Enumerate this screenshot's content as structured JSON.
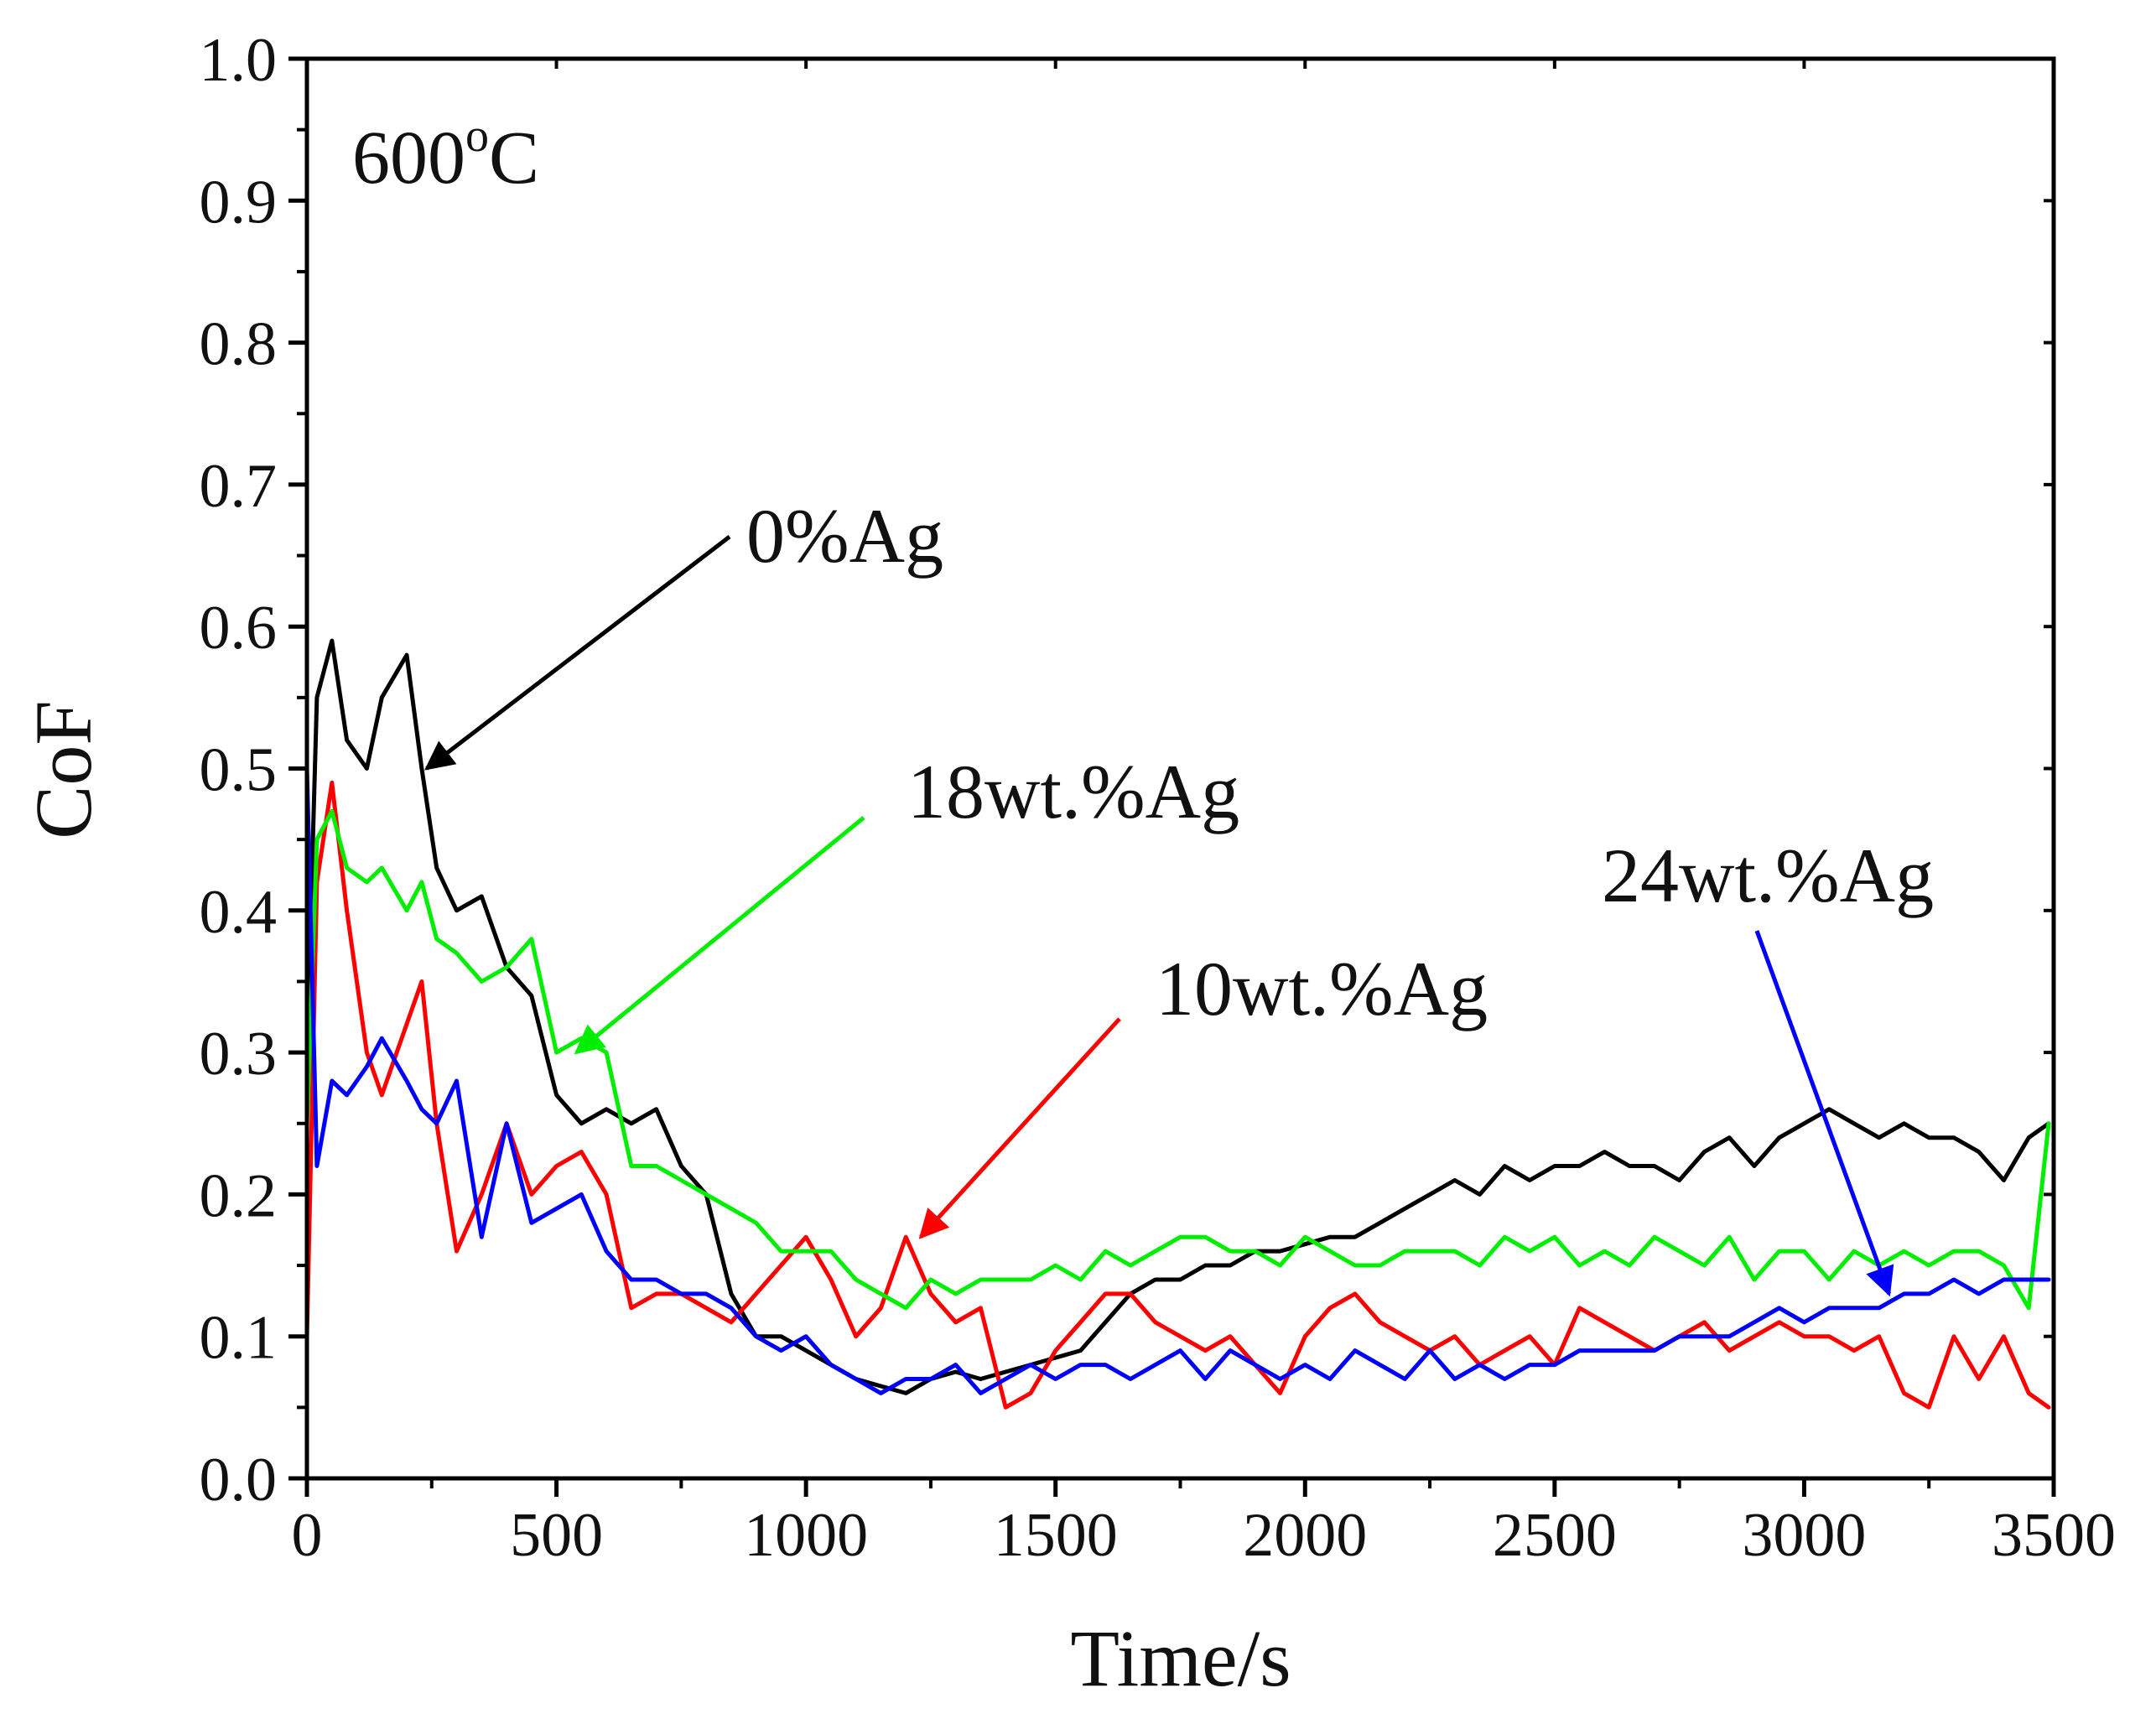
{
  "chart_data": {
    "type": "line",
    "title": "",
    "xlabel": "Time/s",
    "ylabel": "CoF",
    "xlim": [
      0,
      3500
    ],
    "ylim": [
      0.0,
      1.0
    ],
    "x_ticks": [
      "0",
      "500",
      "1000",
      "1500",
      "2000",
      "2500",
      "3000",
      "3500"
    ],
    "y_ticks": [
      "0.0",
      "0.1",
      "0.2",
      "0.3",
      "0.4",
      "0.5",
      "0.6",
      "0.7",
      "0.8",
      "0.9",
      "1.0"
    ],
    "temperature_label": {
      "value": "600",
      "sup": "o",
      "unit": "C"
    },
    "series": [
      {
        "name": "0%Ag",
        "color": "#000000",
        "x": [
          0,
          20,
          50,
          80,
          120,
          150,
          200,
          230,
          260,
          300,
          350,
          400,
          450,
          500,
          550,
          600,
          650,
          700,
          750,
          800,
          850,
          900,
          950,
          1000,
          1050,
          1100,
          1150,
          1200,
          1250,
          1300,
          1350,
          1400,
          1450,
          1500,
          1550,
          1600,
          1650,
          1700,
          1750,
          1800,
          1850,
          1900,
          1950,
          2000,
          2050,
          2100,
          2150,
          2200,
          2250,
          2300,
          2350,
          2400,
          2450,
          2500,
          2550,
          2600,
          2650,
          2700,
          2750,
          2800,
          2850,
          2900,
          2950,
          3000,
          3050,
          3100,
          3150,
          3200,
          3250,
          3300,
          3350,
          3400,
          3450,
          3490
        ],
        "values": [
          0.3,
          0.55,
          0.59,
          0.52,
          0.5,
          0.55,
          0.58,
          0.5,
          0.43,
          0.4,
          0.41,
          0.36,
          0.34,
          0.27,
          0.25,
          0.26,
          0.25,
          0.26,
          0.22,
          0.2,
          0.13,
          0.1,
          0.1,
          0.09,
          0.08,
          0.07,
          0.065,
          0.06,
          0.07,
          0.075,
          0.07,
          0.075,
          0.08,
          0.085,
          0.09,
          0.11,
          0.13,
          0.14,
          0.14,
          0.15,
          0.15,
          0.16,
          0.16,
          0.165,
          0.17,
          0.17,
          0.18,
          0.19,
          0.2,
          0.21,
          0.2,
          0.22,
          0.21,
          0.22,
          0.22,
          0.23,
          0.22,
          0.22,
          0.21,
          0.23,
          0.24,
          0.22,
          0.24,
          0.25,
          0.26,
          0.25,
          0.24,
          0.25,
          0.24,
          0.24,
          0.23,
          0.21,
          0.24,
          0.25
        ]
      },
      {
        "name": "10wt.%Ag",
        "color": "#ff0000",
        "x": [
          0,
          20,
          50,
          80,
          120,
          150,
          200,
          230,
          260,
          300,
          350,
          400,
          450,
          500,
          550,
          600,
          650,
          700,
          750,
          800,
          850,
          900,
          950,
          1000,
          1050,
          1100,
          1150,
          1200,
          1250,
          1300,
          1350,
          1400,
          1450,
          1500,
          1550,
          1600,
          1650,
          1700,
          1750,
          1800,
          1850,
          1900,
          1950,
          2000,
          2050,
          2100,
          2150,
          2200,
          2250,
          2300,
          2350,
          2400,
          2450,
          2500,
          2550,
          2600,
          2650,
          2700,
          2750,
          2800,
          2850,
          2900,
          2950,
          3000,
          3050,
          3100,
          3150,
          3200,
          3250,
          3300,
          3350,
          3400,
          3450,
          3490
        ],
        "values": [
          0.1,
          0.42,
          0.49,
          0.4,
          0.3,
          0.27,
          0.32,
          0.35,
          0.25,
          0.16,
          0.2,
          0.25,
          0.2,
          0.22,
          0.23,
          0.2,
          0.12,
          0.13,
          0.13,
          0.12,
          0.11,
          0.13,
          0.15,
          0.17,
          0.14,
          0.1,
          0.12,
          0.17,
          0.13,
          0.11,
          0.12,
          0.05,
          0.06,
          0.09,
          0.11,
          0.13,
          0.13,
          0.11,
          0.1,
          0.09,
          0.1,
          0.08,
          0.06,
          0.1,
          0.12,
          0.13,
          0.11,
          0.1,
          0.09,
          0.1,
          0.08,
          0.09,
          0.1,
          0.08,
          0.12,
          0.11,
          0.1,
          0.09,
          0.1,
          0.11,
          0.09,
          0.1,
          0.11,
          0.1,
          0.1,
          0.09,
          0.1,
          0.06,
          0.05,
          0.1,
          0.07,
          0.1,
          0.06,
          0.05
        ]
      },
      {
        "name": "18wt.%Ag",
        "color": "#00ee00",
        "x": [
          0,
          20,
          50,
          80,
          120,
          150,
          200,
          230,
          260,
          300,
          350,
          400,
          450,
          500,
          550,
          600,
          650,
          700,
          750,
          800,
          850,
          900,
          950,
          1000,
          1050,
          1100,
          1150,
          1200,
          1250,
          1300,
          1350,
          1400,
          1450,
          1500,
          1550,
          1600,
          1650,
          1700,
          1750,
          1800,
          1850,
          1900,
          1950,
          2000,
          2050,
          2100,
          2150,
          2200,
          2250,
          2300,
          2350,
          2400,
          2450,
          2500,
          2550,
          2600,
          2650,
          2700,
          2750,
          2800,
          2850,
          2900,
          2950,
          3000,
          3050,
          3100,
          3150,
          3200,
          3250,
          3300,
          3350,
          3400,
          3450,
          3490
        ],
        "values": [
          0.25,
          0.45,
          0.47,
          0.43,
          0.42,
          0.43,
          0.4,
          0.42,
          0.38,
          0.37,
          0.35,
          0.36,
          0.38,
          0.3,
          0.31,
          0.3,
          0.22,
          0.22,
          0.21,
          0.2,
          0.19,
          0.18,
          0.16,
          0.16,
          0.16,
          0.14,
          0.13,
          0.12,
          0.14,
          0.13,
          0.14,
          0.14,
          0.14,
          0.15,
          0.14,
          0.16,
          0.15,
          0.16,
          0.17,
          0.17,
          0.16,
          0.16,
          0.15,
          0.17,
          0.16,
          0.15,
          0.15,
          0.16,
          0.16,
          0.16,
          0.15,
          0.17,
          0.16,
          0.17,
          0.15,
          0.16,
          0.15,
          0.17,
          0.16,
          0.15,
          0.17,
          0.14,
          0.16,
          0.16,
          0.14,
          0.16,
          0.15,
          0.16,
          0.15,
          0.16,
          0.16,
          0.15,
          0.12,
          0.25
        ]
      },
      {
        "name": "24wt.%Ag",
        "color": "#0000ff",
        "x": [
          0,
          20,
          50,
          80,
          120,
          150,
          200,
          230,
          260,
          300,
          350,
          400,
          450,
          500,
          550,
          600,
          650,
          700,
          750,
          800,
          850,
          900,
          950,
          1000,
          1050,
          1100,
          1150,
          1200,
          1250,
          1300,
          1350,
          1400,
          1450,
          1500,
          1550,
          1600,
          1650,
          1700,
          1750,
          1800,
          1850,
          1900,
          1950,
          2000,
          2050,
          2100,
          2150,
          2200,
          2250,
          2300,
          2350,
          2400,
          2450,
          2500,
          2550,
          2600,
          2650,
          2700,
          2750,
          2800,
          2850,
          2900,
          2950,
          3000,
          3050,
          3100,
          3150,
          3200,
          3250,
          3300,
          3350,
          3400,
          3450,
          3490
        ],
        "values": [
          0.5,
          0.22,
          0.28,
          0.27,
          0.29,
          0.31,
          0.28,
          0.26,
          0.25,
          0.28,
          0.17,
          0.25,
          0.18,
          0.19,
          0.2,
          0.16,
          0.14,
          0.14,
          0.13,
          0.13,
          0.12,
          0.1,
          0.09,
          0.1,
          0.08,
          0.07,
          0.06,
          0.07,
          0.07,
          0.08,
          0.06,
          0.07,
          0.08,
          0.07,
          0.08,
          0.08,
          0.07,
          0.08,
          0.09,
          0.07,
          0.09,
          0.08,
          0.07,
          0.08,
          0.07,
          0.09,
          0.08,
          0.07,
          0.09,
          0.07,
          0.08,
          0.07,
          0.08,
          0.08,
          0.09,
          0.09,
          0.09,
          0.09,
          0.1,
          0.1,
          0.1,
          0.11,
          0.12,
          0.11,
          0.12,
          0.12,
          0.12,
          0.13,
          0.13,
          0.14,
          0.13,
          0.14,
          0.14,
          0.14
        ]
      }
    ],
    "annotations": [
      {
        "text": "0%Ag",
        "series": "0%Ag",
        "color": "#000000",
        "arrow_tip": [
          240,
          0.5
        ]
      },
      {
        "text": "18wt.%Ag",
        "series": "18wt.%Ag",
        "color": "#00ee00",
        "arrow_tip": [
          540,
          0.3
        ]
      },
      {
        "text": "10wt.%Ag",
        "series": "10wt.%Ag",
        "color": "#ff0000",
        "arrow_tip": [
          1230,
          0.17
        ]
      },
      {
        "text": "24wt.%Ag",
        "series": "24wt.%Ag",
        "color": "#0000ff",
        "arrow_tip": [
          3170,
          0.13
        ]
      }
    ]
  }
}
